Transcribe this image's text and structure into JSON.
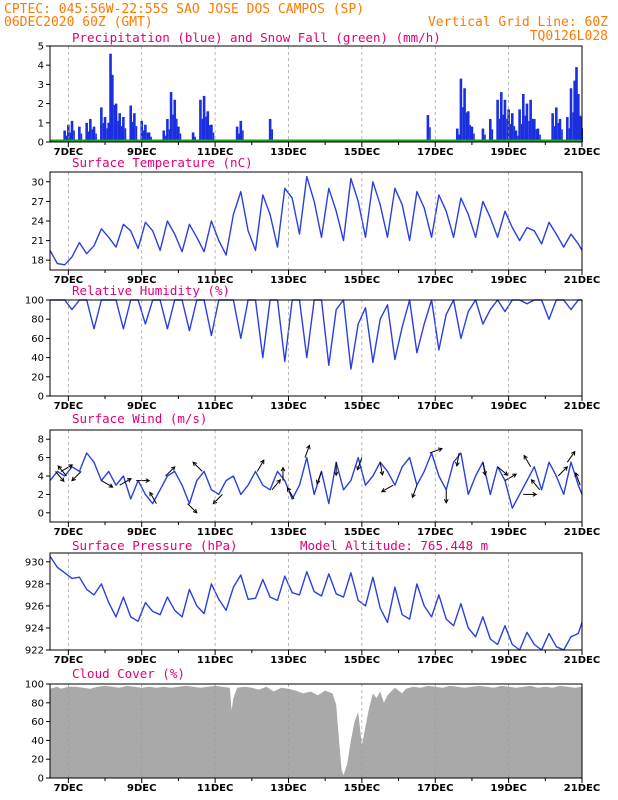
{
  "header": {
    "line1_left": "CPTEC:  045:56W-22:55S  SAO JOSE DOS CAMPOS (SP)",
    "line2_left": "06DEC2020 60Z (GMT)",
    "line2_right": "Vertical Grid Line: 60Z",
    "line3_right": "TQ0126L028"
  },
  "colors": {
    "header_text": "#ff7a00",
    "panel_title": "#e0007a",
    "precip": "#1a2fe0",
    "snow": "#1aa01a",
    "line": "#2b3fe0",
    "cloud": "#a9a9a9",
    "grid": "#999999"
  },
  "x_axis": {
    "start_day": 6.5,
    "end_day": 21.0,
    "tick_labels": [
      "7DEC",
      "9DEC",
      "11DEC",
      "13DEC",
      "15DEC",
      "17DEC",
      "19DEC",
      "21DEC"
    ],
    "tick_days": [
      7,
      9,
      11,
      13,
      15,
      17,
      19,
      21
    ]
  },
  "chart_data": [
    {
      "id": "precip",
      "type": "bar",
      "title": "Precipitation (blue) and Snow Fall (green) (mm/h)",
      "ylim": [
        0,
        5
      ],
      "yticks": [
        0,
        1,
        2,
        3,
        4,
        5
      ],
      "series": [
        {
          "name": "Precipitation",
          "points": [
            [
              6.9,
              0.6
            ],
            [
              7.0,
              0.9
            ],
            [
              7.1,
              1.1
            ],
            [
              7.3,
              0.8
            ],
            [
              7.5,
              1.0
            ],
            [
              7.6,
              1.2
            ],
            [
              7.7,
              0.8
            ],
            [
              7.9,
              1.8
            ],
            [
              8.0,
              1.3
            ],
            [
              8.1,
              1.0
            ],
            [
              8.15,
              4.6
            ],
            [
              8.2,
              3.5
            ],
            [
              8.3,
              2.0
            ],
            [
              8.4,
              1.5
            ],
            [
              8.5,
              1.3
            ],
            [
              8.7,
              1.9
            ],
            [
              8.8,
              1.5
            ],
            [
              9.0,
              1.1
            ],
            [
              9.1,
              0.9
            ],
            [
              9.2,
              0.5
            ],
            [
              9.6,
              0.6
            ],
            [
              9.7,
              1.2
            ],
            [
              9.8,
              2.6
            ],
            [
              9.9,
              2.2
            ],
            [
              10.0,
              0.8
            ],
            [
              10.4,
              0.5
            ],
            [
              10.6,
              2.2
            ],
            [
              10.7,
              2.4
            ],
            [
              10.8,
              1.6
            ],
            [
              10.9,
              0.9
            ],
            [
              11.6,
              0.8
            ],
            [
              11.7,
              1.1
            ],
            [
              12.5,
              1.2
            ],
            [
              16.8,
              1.4
            ],
            [
              17.6,
              0.7
            ],
            [
              17.7,
              3.3
            ],
            [
              17.8,
              2.8
            ],
            [
              17.9,
              1.6
            ],
            [
              18.0,
              0.8
            ],
            [
              18.3,
              0.7
            ],
            [
              18.5,
              1.2
            ],
            [
              18.7,
              2.2
            ],
            [
              18.8,
              2.6
            ],
            [
              18.9,
              2.2
            ],
            [
              19.0,
              1.7
            ],
            [
              19.1,
              1.5
            ],
            [
              19.2,
              0.6
            ],
            [
              19.3,
              1.7
            ],
            [
              19.4,
              2.5
            ],
            [
              19.5,
              2.0
            ],
            [
              19.6,
              2.2
            ],
            [
              19.7,
              1.2
            ],
            [
              19.8,
              0.7
            ],
            [
              20.2,
              1.5
            ],
            [
              20.3,
              1.8
            ],
            [
              20.4,
              1.2
            ],
            [
              20.6,
              1.3
            ],
            [
              20.7,
              2.8
            ],
            [
              20.8,
              3.2
            ],
            [
              20.85,
              3.9
            ],
            [
              20.9,
              2.5
            ],
            [
              20.95,
              1.3
            ]
          ]
        },
        {
          "name": "Snow Fall",
          "value": 0.08
        }
      ]
    },
    {
      "id": "temp",
      "type": "line",
      "title": "Surface Temperature (nC)",
      "ylim": [
        16.5,
        31.5
      ],
      "yticks": [
        18,
        21,
        24,
        27,
        30
      ],
      "x": [
        6.5,
        6.7,
        6.9,
        7.1,
        7.3,
        7.5,
        7.7,
        7.9,
        8.1,
        8.3,
        8.5,
        8.7,
        8.9,
        9.1,
        9.3,
        9.5,
        9.7,
        9.9,
        10.1,
        10.3,
        10.5,
        10.7,
        10.9,
        11.1,
        11.3,
        11.5,
        11.7,
        11.9,
        12.1,
        12.3,
        12.5,
        12.7,
        12.9,
        13.1,
        13.3,
        13.5,
        13.7,
        13.9,
        14.1,
        14.3,
        14.5,
        14.7,
        14.9,
        15.1,
        15.3,
        15.5,
        15.7,
        15.9,
        16.1,
        16.3,
        16.5,
        16.7,
        16.9,
        17.1,
        17.3,
        17.5,
        17.7,
        17.9,
        18.1,
        18.3,
        18.5,
        18.7,
        18.9,
        19.1,
        19.3,
        19.5,
        19.7,
        19.9,
        20.1,
        20.3,
        20.5,
        20.7,
        20.9,
        21.0
      ],
      "values": [
        19.5,
        17.5,
        17.3,
        18.5,
        20.7,
        19.0,
        20.2,
        22.8,
        21.5,
        20.0,
        23.5,
        22.5,
        19.8,
        23.8,
        22.5,
        19.5,
        24.0,
        22.0,
        19.3,
        23.5,
        21.5,
        19.3,
        24.0,
        21.0,
        18.8,
        25.0,
        28.5,
        22.5,
        19.5,
        28.0,
        25.0,
        20.0,
        29.0,
        27.5,
        22.0,
        30.8,
        27.0,
        21.5,
        29.0,
        25.5,
        21.0,
        30.5,
        27.0,
        21.5,
        30.0,
        26.5,
        21.5,
        29.0,
        26.5,
        21.0,
        28.5,
        26.0,
        21.5,
        28.0,
        25.5,
        21.5,
        27.5,
        25.0,
        21.5,
        27.0,
        24.5,
        21.5,
        25.5,
        23.0,
        21.0,
        23.0,
        22.5,
        20.5,
        23.8,
        22.0,
        20.0,
        22.0,
        20.5,
        19.5
      ]
    },
    {
      "id": "rh",
      "type": "line",
      "title": "Relative Humidity (%)",
      "ylim": [
        0,
        100
      ],
      "yticks": [
        0,
        20,
        40,
        60,
        80,
        100
      ],
      "x": [
        6.5,
        6.7,
        6.9,
        7.1,
        7.3,
        7.5,
        7.7,
        7.9,
        8.1,
        8.3,
        8.5,
        8.7,
        8.9,
        9.1,
        9.3,
        9.5,
        9.7,
        9.9,
        10.1,
        10.3,
        10.5,
        10.7,
        10.9,
        11.1,
        11.3,
        11.5,
        11.7,
        11.9,
        12.1,
        12.3,
        12.5,
        12.7,
        12.9,
        13.1,
        13.3,
        13.5,
        13.7,
        13.9,
        14.1,
        14.3,
        14.5,
        14.7,
        14.9,
        15.1,
        15.3,
        15.5,
        15.7,
        15.9,
        16.1,
        16.3,
        16.5,
        16.7,
        16.9,
        17.1,
        17.3,
        17.5,
        17.7,
        17.9,
        18.1,
        18.3,
        18.5,
        18.7,
        18.9,
        19.1,
        19.3,
        19.5,
        19.7,
        19.9,
        20.1,
        20.3,
        20.5,
        20.7,
        20.9,
        21.0
      ],
      "values": [
        100,
        100,
        100,
        90,
        100,
        100,
        70,
        100,
        100,
        100,
        70,
        100,
        100,
        75,
        100,
        100,
        70,
        100,
        100,
        68,
        100,
        100,
        63,
        100,
        100,
        100,
        60,
        100,
        100,
        40,
        100,
        100,
        36,
        100,
        100,
        40,
        100,
        100,
        32,
        90,
        100,
        28,
        75,
        92,
        35,
        80,
        95,
        38,
        72,
        100,
        45,
        75,
        100,
        48,
        85,
        100,
        60,
        88,
        100,
        75,
        90,
        100,
        88,
        100,
        100,
        96,
        100,
        100,
        80,
        100,
        100,
        90,
        100,
        100
      ]
    },
    {
      "id": "wind",
      "type": "line",
      "title": "Surface Wind (m/s)",
      "ylim": [
        -1,
        9
      ],
      "yticks": [
        0,
        2,
        4,
        6,
        8
      ],
      "x": [
        6.5,
        6.7,
        6.9,
        7.1,
        7.3,
        7.5,
        7.7,
        7.9,
        8.1,
        8.3,
        8.5,
        8.7,
        8.9,
        9.1,
        9.3,
        9.5,
        9.7,
        9.9,
        10.1,
        10.3,
        10.5,
        10.7,
        10.9,
        11.1,
        11.3,
        11.5,
        11.7,
        11.9,
        12.1,
        12.3,
        12.5,
        12.7,
        12.9,
        13.1,
        13.3,
        13.5,
        13.7,
        13.9,
        14.1,
        14.3,
        14.5,
        14.7,
        14.9,
        15.1,
        15.3,
        15.5,
        15.7,
        15.9,
        16.1,
        16.3,
        16.5,
        16.7,
        16.9,
        17.1,
        17.3,
        17.5,
        17.7,
        17.9,
        18.1,
        18.3,
        18.5,
        18.7,
        18.9,
        19.1,
        19.3,
        19.5,
        19.7,
        19.9,
        20.1,
        20.3,
        20.5,
        20.7,
        20.9,
        21.0
      ],
      "values": [
        3.5,
        4.5,
        4.0,
        5.0,
        4.5,
        6.5,
        5.5,
        3.5,
        4.5,
        3.0,
        4.0,
        1.5,
        3.5,
        2.0,
        1.0,
        2.5,
        4.0,
        4.5,
        3.0,
        1.0,
        3.5,
        4.5,
        2.5,
        2.0,
        3.5,
        4.0,
        2.0,
        3.0,
        4.5,
        3.0,
        2.5,
        4.5,
        3.5,
        1.5,
        3.0,
        6.0,
        2.0,
        4.5,
        1.0,
        5.5,
        2.5,
        3.5,
        6.0,
        3.0,
        4.0,
        5.5,
        4.5,
        3.0,
        5.0,
        6.0,
        3.0,
        4.5,
        6.5,
        4.0,
        2.5,
        5.5,
        6.5,
        2.0,
        4.0,
        5.5,
        2.0,
        5.0,
        3.5,
        0.5,
        2.0,
        3.5,
        5.0,
        2.5,
        5.5,
        4.0,
        2.0,
        5.5,
        3.0,
        2.0
      ],
      "arrows": [
        [
          6.65,
          140
        ],
        [
          6.8,
          60
        ],
        [
          6.95,
          320
        ],
        [
          7.35,
          225
        ],
        [
          7.9,
          120
        ],
        [
          8.4,
          60
        ],
        [
          8.85,
          90
        ],
        [
          9.4,
          330
        ],
        [
          9.65,
          45
        ],
        [
          10.25,
          135
        ],
        [
          10.65,
          315
        ],
        [
          11.2,
          225
        ],
        [
          12.15,
          30
        ],
        [
          12.55,
          40
        ],
        [
          12.85,
          0
        ],
        [
          13.15,
          330
        ],
        [
          13.45,
          20
        ],
        [
          13.9,
          200
        ],
        [
          14.3,
          180
        ],
        [
          15.0,
          200
        ],
        [
          15.5,
          170
        ],
        [
          15.85,
          240
        ],
        [
          16.5,
          200
        ],
        [
          16.85,
          70
        ],
        [
          17.3,
          180
        ],
        [
          17.65,
          190
        ],
        [
          18.3,
          170
        ],
        [
          18.7,
          130
        ],
        [
          18.9,
          60
        ],
        [
          19.4,
          90
        ],
        [
          19.6,
          330
        ],
        [
          19.85,
          320
        ],
        [
          20.35,
          45
        ],
        [
          20.6,
          35
        ],
        [
          20.95,
          340
        ]
      ]
    },
    {
      "id": "pres",
      "type": "line",
      "title": "Surface Pressure (hPa)",
      "annotation": "Model Altitude: 765.448 m",
      "ylim": [
        922,
        930.8
      ],
      "yticks": [
        922,
        924,
        926,
        928,
        930
      ],
      "x": [
        6.5,
        6.7,
        6.9,
        7.1,
        7.3,
        7.5,
        7.7,
        7.9,
        8.1,
        8.3,
        8.5,
        8.7,
        8.9,
        9.1,
        9.3,
        9.5,
        9.7,
        9.9,
        10.1,
        10.3,
        10.5,
        10.7,
        10.9,
        11.1,
        11.3,
        11.5,
        11.7,
        11.9,
        12.1,
        12.3,
        12.5,
        12.7,
        12.9,
        13.1,
        13.3,
        13.5,
        13.7,
        13.9,
        14.1,
        14.3,
        14.5,
        14.7,
        14.9,
        15.1,
        15.3,
        15.5,
        15.7,
        15.9,
        16.1,
        16.3,
        16.5,
        16.7,
        16.9,
        17.1,
        17.3,
        17.5,
        17.7,
        17.9,
        18.1,
        18.3,
        18.5,
        18.7,
        18.9,
        19.1,
        19.3,
        19.5,
        19.7,
        19.9,
        20.1,
        20.3,
        20.5,
        20.7,
        20.9,
        21.0
      ],
      "values": [
        930.5,
        929.5,
        929.0,
        928.5,
        928.6,
        927.5,
        927.0,
        928.0,
        926.3,
        925.0,
        926.8,
        925.0,
        924.6,
        926.3,
        925.5,
        925.2,
        926.8,
        925.6,
        925.0,
        927.5,
        926.0,
        925.3,
        928.0,
        926.6,
        925.6,
        927.7,
        928.8,
        926.6,
        926.7,
        928.4,
        926.8,
        926.5,
        928.7,
        927.2,
        927.0,
        929.1,
        927.3,
        926.9,
        928.9,
        927.1,
        926.8,
        929.0,
        926.5,
        926.0,
        928.6,
        925.8,
        924.5,
        927.7,
        925.2,
        924.8,
        928.0,
        926.0,
        925.0,
        927.0,
        924.8,
        924.2,
        926.2,
        924.0,
        923.2,
        925.0,
        923.0,
        922.5,
        924.2,
        922.5,
        922.0,
        923.6,
        922.5,
        922.0,
        923.5,
        922.3,
        922.0,
        923.2,
        923.5,
        924.5
      ]
    },
    {
      "id": "cloud",
      "type": "area",
      "title": "Cloud Cover (%)",
      "ylim": [
        0,
        100
      ],
      "yticks": [
        0,
        20,
        40,
        60,
        80,
        100
      ],
      "x": [
        6.5,
        6.6,
        6.7,
        6.8,
        6.9,
        7.0,
        7.2,
        7.4,
        7.6,
        7.8,
        8.0,
        8.2,
        8.4,
        8.6,
        8.8,
        9.0,
        9.2,
        9.4,
        9.6,
        9.8,
        10.0,
        10.2,
        10.4,
        10.6,
        10.8,
        11.0,
        11.2,
        11.4,
        11.45,
        11.5,
        11.6,
        11.8,
        12.0,
        12.2,
        12.4,
        12.6,
        12.8,
        13.0,
        13.2,
        13.4,
        13.6,
        13.8,
        14.0,
        14.2,
        14.3,
        14.4,
        14.45,
        14.5,
        14.6,
        14.7,
        14.8,
        14.9,
        15.0,
        15.1,
        15.2,
        15.3,
        15.4,
        15.5,
        15.6,
        15.7,
        15.8,
        15.9,
        16.0,
        16.1,
        16.2,
        16.4,
        16.6,
        16.8,
        17.0,
        17.2,
        17.4,
        17.6,
        17.8,
        18.0,
        18.2,
        18.4,
        18.6,
        18.8,
        19.0,
        19.2,
        19.4,
        19.6,
        19.8,
        20.0,
        20.2,
        20.4,
        20.6,
        20.8,
        21.0
      ],
      "values": [
        95,
        96,
        97,
        95,
        96,
        97,
        97,
        96,
        95,
        97,
        98,
        97,
        96,
        98,
        97,
        96,
        97,
        96,
        97,
        96,
        97,
        98,
        97,
        96,
        97,
        98,
        97,
        96,
        72,
        85,
        96,
        97,
        96,
        94,
        97,
        92,
        96,
        95,
        93,
        90,
        92,
        88,
        93,
        90,
        78,
        30,
        8,
        3,
        15,
        40,
        60,
        70,
        35,
        55,
        75,
        90,
        85,
        92,
        80,
        88,
        92,
        96,
        93,
        90,
        95,
        97,
        96,
        98,
        97,
        96,
        98,
        97,
        96,
        97,
        98,
        97,
        96,
        98,
        97,
        96,
        97,
        98,
        96,
        97,
        96,
        98,
        97,
        96,
        97
      ]
    }
  ]
}
